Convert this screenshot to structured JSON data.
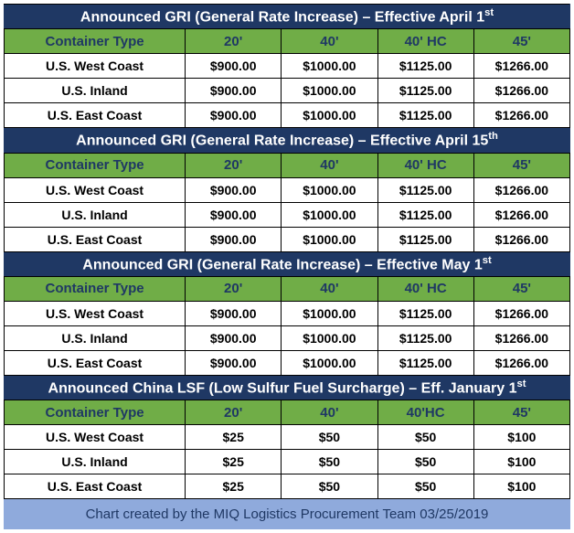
{
  "colors": {
    "title_bg": "#1f3864",
    "title_fg": "#ffffff",
    "header_bg": "#70ad47",
    "header_fg": "#1f3864",
    "data_bg": "#ffffff",
    "data_fg": "#000000",
    "footer_bg": "#8faadc",
    "footer_fg": "#1f3864",
    "border": "#000000"
  },
  "sections": [
    {
      "title_pre": "Announced GRI (General Rate Increase) – Effective April 1",
      "title_sup": "st",
      "columns": [
        "Container Type",
        "20'",
        "40'",
        "40' HC",
        "45'"
      ],
      "rows": [
        [
          "U.S. West Coast",
          "$900.00",
          "$1000.00",
          "$1125.00",
          "$1266.00"
        ],
        [
          "U.S. Inland",
          "$900.00",
          "$1000.00",
          "$1125.00",
          "$1266.00"
        ],
        [
          "U.S. East Coast",
          "$900.00",
          "$1000.00",
          "$1125.00",
          "$1266.00"
        ]
      ]
    },
    {
      "title_pre": "Announced GRI (General Rate Increase) – Effective April 15",
      "title_sup": "th",
      "columns": [
        "Container Type",
        "20'",
        "40'",
        "40' HC",
        "45'"
      ],
      "rows": [
        [
          "U.S. West Coast",
          "$900.00",
          "$1000.00",
          "$1125.00",
          "$1266.00"
        ],
        [
          "U.S. Inland",
          "$900.00",
          "$1000.00",
          "$1125.00",
          "$1266.00"
        ],
        [
          "U.S. East Coast",
          "$900.00",
          "$1000.00",
          "$1125.00",
          "$1266.00"
        ]
      ]
    },
    {
      "title_pre": "Announced GRI (General Rate Increase) – Effective May 1",
      "title_sup": "st",
      "columns": [
        "Container Type",
        "20'",
        "40'",
        "40' HC",
        "45'"
      ],
      "rows": [
        [
          "U.S. West Coast",
          "$900.00",
          "$1000.00",
          "$1125.00",
          "$1266.00"
        ],
        [
          "U.S. Inland",
          "$900.00",
          "$1000.00",
          "$1125.00",
          "$1266.00"
        ],
        [
          "U.S. East Coast",
          "$900.00",
          "$1000.00",
          "$1125.00",
          "$1266.00"
        ]
      ]
    },
    {
      "title_pre": "Announced China LSF (Low Sulfur Fuel Surcharge) – Eff. January 1",
      "title_sup": "st",
      "columns": [
        "Container Type",
        "20'",
        "40'",
        "40'HC",
        "45'"
      ],
      "rows": [
        [
          "U.S. West Coast",
          "$25",
          "$50",
          "$50",
          "$100"
        ],
        [
          "U.S. Inland",
          "$25",
          "$50",
          "$50",
          "$100"
        ],
        [
          "U.S. East Coast",
          "$25",
          "$50",
          "$50",
          "$100"
        ]
      ]
    }
  ],
  "footer": "Chart created by the MIQ Logistics Procurement Team 03/25/2019"
}
